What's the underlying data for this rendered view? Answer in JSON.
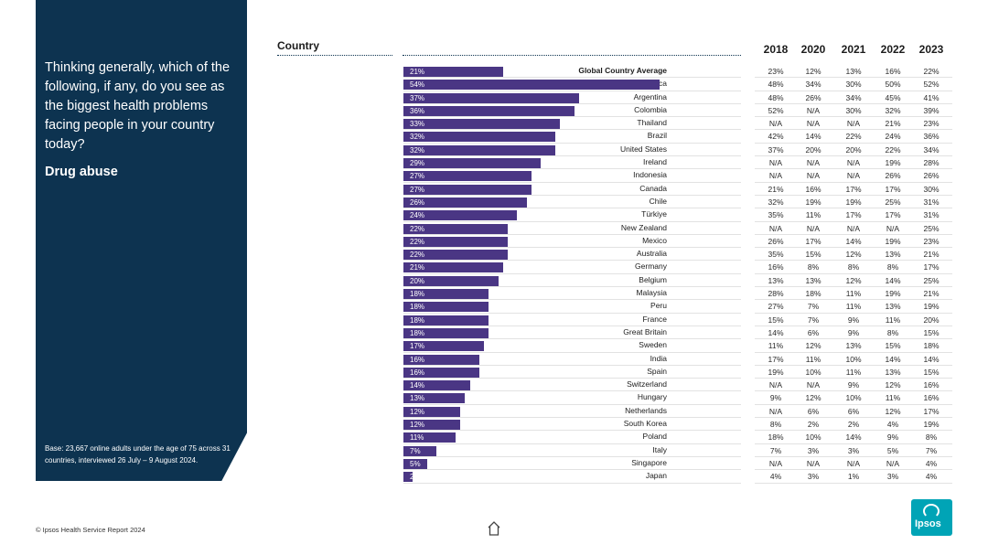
{
  "sidebar": {
    "question": "Thinking generally, which of the following, if any, do you see as the biggest health problems facing people in your country today?",
    "topic": "Drug abuse",
    "base_note": "Base: 23,667 online adults under the age of 75 across 31 countries, interviewed 26 July – 9 August 2024."
  },
  "header": {
    "country_label": "Country",
    "years": [
      "2018",
      "2020",
      "2021",
      "2022",
      "2023"
    ]
  },
  "footer": {
    "source": "© Ipsos Health Service Report 2024"
  },
  "logo": {
    "text": "Ipsos"
  },
  "colors": {
    "panel": "#0d3350",
    "bar": "#4a3684",
    "logo": "#00a4b6"
  },
  "chart_data": {
    "type": "bar",
    "orientation": "horizontal",
    "title": "Drug abuse",
    "xlabel": "",
    "ylabel": "Country",
    "xlim": [
      0,
      60
    ],
    "categories": [
      "Global Country Average",
      "South Africa",
      "Argentina",
      "Colombia",
      "Thailand",
      "Brazil",
      "United States",
      "Ireland",
      "Indonesia",
      "Canada",
      "Chile",
      "Türkiye",
      "New Zealand",
      "Mexico",
      "Australia",
      "Germany",
      "Belgium",
      "Malaysia",
      "Peru",
      "France",
      "Great Britain",
      "Sweden",
      "India",
      "Spain",
      "Switzerland",
      "Hungary",
      "Netherlands",
      "South Korea",
      "Poland",
      "Italy",
      "Singapore",
      "Japan"
    ],
    "values": [
      21,
      54,
      37,
      36,
      33,
      32,
      32,
      29,
      27,
      27,
      26,
      24,
      22,
      22,
      22,
      21,
      20,
      18,
      18,
      18,
      18,
      17,
      16,
      16,
      14,
      13,
      12,
      12,
      11,
      7,
      5,
      2
    ],
    "value_labels": [
      "21%",
      "54%",
      "37%",
      "36%",
      "33%",
      "32%",
      "32%",
      "29%",
      "27%",
      "27%",
      "26%",
      "24%",
      "22%",
      "22%",
      "22%",
      "21%",
      "20%",
      "18%",
      "18%",
      "18%",
      "18%",
      "17%",
      "16%",
      "16%",
      "14%",
      "13%",
      "12%",
      "12%",
      "11%",
      "7%",
      "5%",
      "2"
    ],
    "history": [
      [
        "23%",
        "12%",
        "13%",
        "16%",
        "22%"
      ],
      [
        "48%",
        "34%",
        "30%",
        "50%",
        "52%"
      ],
      [
        "48%",
        "26%",
        "34%",
        "45%",
        "41%"
      ],
      [
        "52%",
        "N/A",
        "30%",
        "32%",
        "39%"
      ],
      [
        "N/A",
        "N/A",
        "N/A",
        "21%",
        "23%"
      ],
      [
        "42%",
        "14%",
        "22%",
        "24%",
        "36%"
      ],
      [
        "37%",
        "20%",
        "20%",
        "22%",
        "34%"
      ],
      [
        "N/A",
        "N/A",
        "N/A",
        "19%",
        "28%"
      ],
      [
        "N/A",
        "N/A",
        "N/A",
        "26%",
        "26%"
      ],
      [
        "21%",
        "16%",
        "17%",
        "17%",
        "30%"
      ],
      [
        "32%",
        "19%",
        "19%",
        "25%",
        "31%"
      ],
      [
        "35%",
        "11%",
        "17%",
        "17%",
        "31%"
      ],
      [
        "N/A",
        "N/A",
        "N/A",
        "N/A",
        "25%"
      ],
      [
        "26%",
        "17%",
        "14%",
        "19%",
        "23%"
      ],
      [
        "35%",
        "15%",
        "12%",
        "13%",
        "21%"
      ],
      [
        "16%",
        "8%",
        "8%",
        "8%",
        "17%"
      ],
      [
        "13%",
        "13%",
        "12%",
        "14%",
        "25%"
      ],
      [
        "28%",
        "18%",
        "11%",
        "19%",
        "21%"
      ],
      [
        "27%",
        "7%",
        "11%",
        "13%",
        "19%"
      ],
      [
        "15%",
        "7%",
        "9%",
        "11%",
        "20%"
      ],
      [
        "14%",
        "6%",
        "9%",
        "8%",
        "15%"
      ],
      [
        "11%",
        "12%",
        "13%",
        "15%",
        "18%"
      ],
      [
        "17%",
        "11%",
        "10%",
        "14%",
        "14%"
      ],
      [
        "19%",
        "10%",
        "11%",
        "13%",
        "15%"
      ],
      [
        "N/A",
        "N/A",
        "9%",
        "12%",
        "16%"
      ],
      [
        "9%",
        "12%",
        "10%",
        "11%",
        "16%"
      ],
      [
        "N/A",
        "6%",
        "6%",
        "12%",
        "17%"
      ],
      [
        "8%",
        "2%",
        "2%",
        "4%",
        "19%"
      ],
      [
        "18%",
        "10%",
        "14%",
        "9%",
        "8%"
      ],
      [
        "7%",
        "3%",
        "3%",
        "5%",
        "7%"
      ],
      [
        "N/A",
        "N/A",
        "N/A",
        "N/A",
        "4%"
      ],
      [
        "4%",
        "3%",
        "1%",
        "3%",
        "4%"
      ]
    ]
  }
}
